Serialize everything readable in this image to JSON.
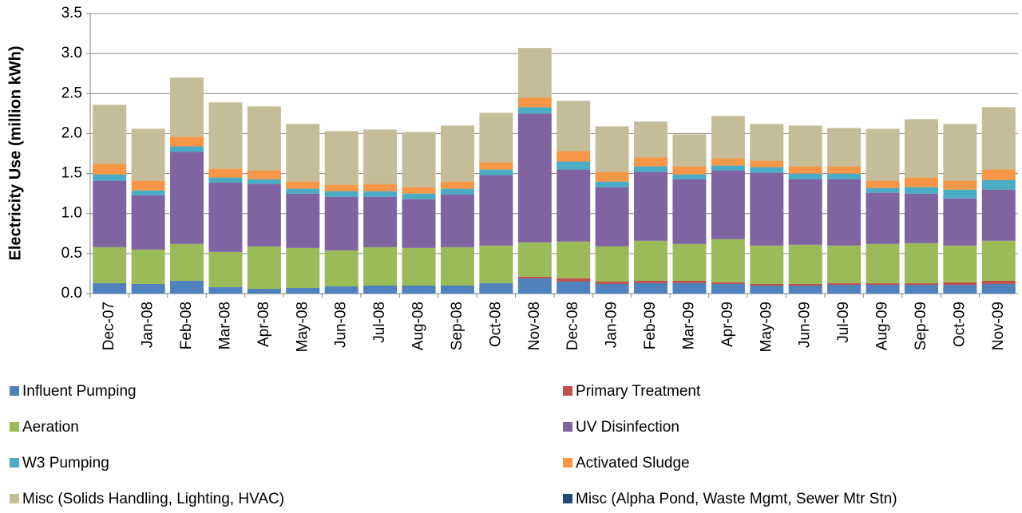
{
  "chart_data": {
    "type": "stacked_bar",
    "y_axis_label": "Electricity Use (million kWh)",
    "categories": [
      "Dec-07",
      "Jan-08",
      "Feb-08",
      "Mar-08",
      "Apr-08",
      "May-08",
      "Jun-08",
      "Jul-08",
      "Aug-08",
      "Sep-08",
      "Oct-08",
      "Nov-08",
      "Dec-08",
      "Jan-09",
      "Feb-09",
      "Mar-09",
      "Apr-09",
      "May-09",
      "Jun-09",
      "Jul-09",
      "Aug-09",
      "Sep-09",
      "Oct-09",
      "Nov-09"
    ],
    "series": [
      {
        "name": "Influent Pumping",
        "color": "#4f81bd",
        "values": [
          0.13,
          0.12,
          0.16,
          0.08,
          0.06,
          0.07,
          0.09,
          0.1,
          0.1,
          0.1,
          0.13,
          0.19,
          0.15,
          0.12,
          0.13,
          0.13,
          0.12,
          0.1,
          0.1,
          0.11,
          0.11,
          0.11,
          0.11,
          0.12
        ]
      },
      {
        "name": "Primary Treatment",
        "color": "#c0504d",
        "values": [
          0,
          0,
          0,
          0,
          0,
          0,
          0,
          0,
          0,
          0,
          0,
          0.02,
          0.04,
          0.03,
          0.03,
          0.03,
          0.02,
          0.02,
          0.02,
          0.02,
          0.02,
          0.02,
          0.03,
          0.04
        ]
      },
      {
        "name": "Aeration",
        "color": "#9bbb59",
        "values": [
          0.45,
          0.43,
          0.46,
          0.44,
          0.53,
          0.5,
          0.45,
          0.48,
          0.47,
          0.48,
          0.47,
          0.43,
          0.46,
          0.44,
          0.5,
          0.46,
          0.54,
          0.48,
          0.49,
          0.47,
          0.49,
          0.5,
          0.46,
          0.5
        ]
      },
      {
        "name": "UV Disinfection",
        "color": "#8064a2",
        "values": [
          0.83,
          0.68,
          1.15,
          0.87,
          0.78,
          0.68,
          0.67,
          0.63,
          0.61,
          0.66,
          0.88,
          1.61,
          0.9,
          0.74,
          0.86,
          0.81,
          0.86,
          0.91,
          0.82,
          0.83,
          0.64,
          0.62,
          0.59,
          0.64
        ]
      },
      {
        "name": "W3 Pumping",
        "color": "#4bacc6",
        "values": [
          0.08,
          0.06,
          0.07,
          0.06,
          0.06,
          0.06,
          0.07,
          0.07,
          0.07,
          0.07,
          0.07,
          0.08,
          0.1,
          0.07,
          0.07,
          0.06,
          0.06,
          0.07,
          0.07,
          0.07,
          0.06,
          0.08,
          0.11,
          0.12
        ]
      },
      {
        "name": "Activated Sludge",
        "color": "#f79646",
        "values": [
          0.13,
          0.12,
          0.12,
          0.11,
          0.11,
          0.09,
          0.08,
          0.09,
          0.08,
          0.09,
          0.09,
          0.12,
          0.13,
          0.12,
          0.11,
          0.1,
          0.09,
          0.08,
          0.09,
          0.09,
          0.09,
          0.12,
          0.11,
          0.13
        ]
      },
      {
        "name": "Misc (Solids Handling, Lighting, HVAC)",
        "color": "#c4bd97",
        "values": [
          0.74,
          0.65,
          0.74,
          0.83,
          0.8,
          0.72,
          0.67,
          0.68,
          0.69,
          0.7,
          0.62,
          0.62,
          0.63,
          0.57,
          0.45,
          0.4,
          0.53,
          0.46,
          0.51,
          0.48,
          0.65,
          0.73,
          0.71,
          0.78
        ]
      },
      {
        "name": "Misc (Alpha Pond, Waste Mgmt, Sewer Mtr Stn)",
        "color": "#1f497d",
        "values": [
          0,
          0,
          0,
          0,
          0,
          0,
          0,
          0,
          0,
          0,
          0,
          0,
          0,
          0,
          0,
          0,
          0,
          0,
          0,
          0,
          0,
          0,
          0,
          0
        ]
      }
    ],
    "ylim": [
      0,
      3.5
    ],
    "yticks": [
      {
        "value": 0,
        "label": "0.0"
      },
      0.5,
      {
        "value": 1,
        "label": "1.0"
      },
      1.5,
      {
        "value": 2,
        "label": "2.0"
      },
      2.5,
      {
        "value": 3,
        "label": "3.0"
      },
      3.5
    ],
    "grid": true,
    "legend": "bottom"
  }
}
